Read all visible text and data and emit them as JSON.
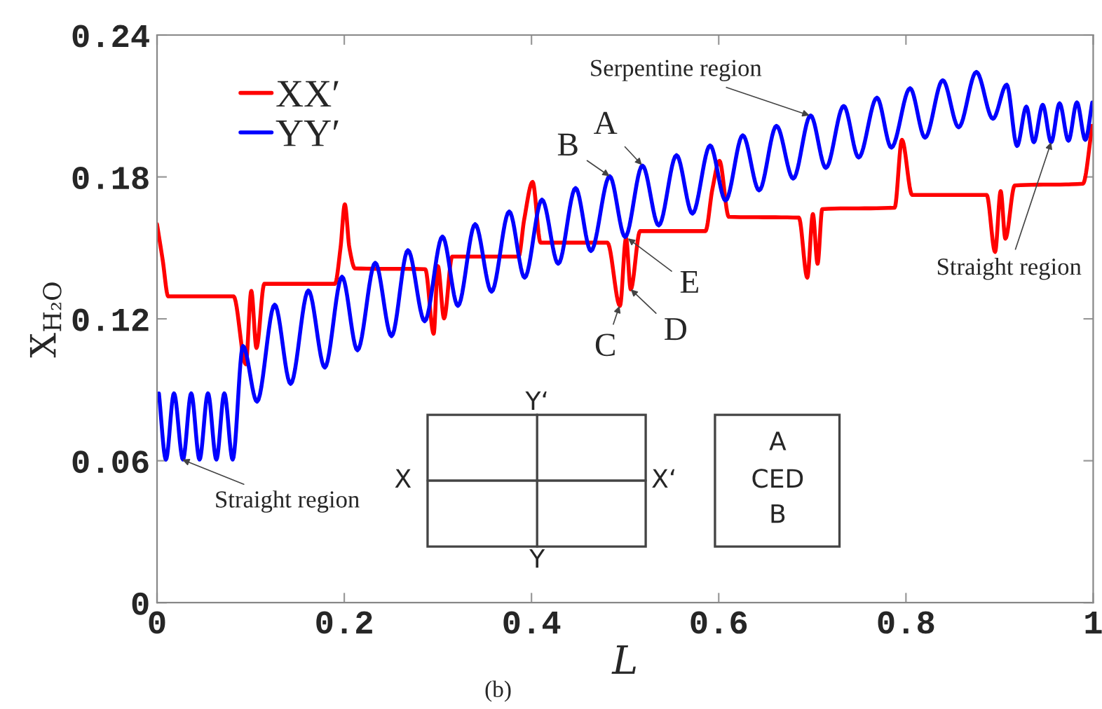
{
  "chart_data": {
    "type": "line",
    "xlabel": "L",
    "ylabel": "X$_{H₂O}$",
    "xlim": [
      0,
      1
    ],
    "ylim": [
      0,
      0.24
    ],
    "xticks": [
      0,
      0.2,
      0.4,
      0.6,
      0.8,
      1
    ],
    "yticks": [
      0,
      0.06,
      0.12,
      0.18,
      0.24
    ],
    "grid": false,
    "legend": "top left",
    "marker": "none",
    "line_style": "solid",
    "series": [
      {
        "name": "XX′",
        "color": "#ff0000",
        "x": [
          0,
          0.006,
          0.012,
          0.0818,
          0.0948,
          0.1007,
          0.1062,
          0.1146,
          0.19,
          0.196,
          0.2006,
          0.2055,
          0.2115,
          0.2865,
          0.2955,
          0.3,
          0.3066,
          0.3153,
          0.3862,
          0.3922,
          0.4012,
          0.4097,
          0.4811,
          0.4945,
          0.501,
          0.506,
          0.516,
          0.5858,
          0.5933,
          0.6008,
          0.6108,
          0.6856,
          0.6946,
          0.7006,
          0.7056,
          0.7106,
          0.7879,
          0.7957,
          0.8066,
          0.8862,
          0.8952,
          0.9012,
          0.9062,
          0.9162,
          0.989,
          0.999
        ],
        "values": [
          0.16,
          0.145,
          0.1295,
          0.1295,
          0.1008,
          0.1318,
          0.1077,
          0.1348,
          0.1348,
          0.15,
          0.1684,
          0.15,
          0.1413,
          0.141,
          0.1137,
          0.1423,
          0.1202,
          0.1463,
          0.1463,
          0.162,
          0.1779,
          0.1522,
          0.1522,
          0.1255,
          0.1542,
          0.1325,
          0.1571,
          0.1571,
          0.175,
          0.1868,
          0.1631,
          0.1628,
          0.1374,
          0.1643,
          0.1433,
          0.1664,
          0.167,
          0.1957,
          0.1724,
          0.1724,
          0.1483,
          0.174,
          0.1539,
          0.1764,
          0.1771,
          0.2016
        ]
      },
      {
        "name": "YY′",
        "color": "#0000ff",
        "x": [
          0.002,
          0.0095,
          0.0181,
          0.0277,
          0.0365,
          0.0454,
          0.0544,
          0.0634,
          0.0719,
          0.0808,
          0.0918,
          0.1068,
          0.1257,
          0.1427,
          0.1617,
          0.1792,
          0.1976,
          0.2141,
          0.2331,
          0.2505,
          0.268,
          0.2859,
          0.3049,
          0.3214,
          0.3398,
          0.3573,
          0.3762,
          0.3927,
          0.4112,
          0.4286,
          0.4471,
          0.4635,
          0.4835,
          0.5,
          0.5185,
          0.5359,
          0.5549,
          0.5719,
          0.5908,
          0.6073,
          0.6257,
          0.6432,
          0.6617,
          0.6796,
          0.6981,
          0.7145,
          0.7335,
          0.7495,
          0.769,
          0.7844,
          0.8044,
          0.8204,
          0.8393,
          0.8563,
          0.8752,
          0.8929,
          0.9076,
          0.9187,
          0.9286,
          0.9366,
          0.9461,
          0.9551,
          0.9641,
          0.9736,
          0.9826,
          0.9916,
          0.999
        ],
        "values": [
          0.0885,
          0.0605,
          0.0885,
          0.0605,
          0.0885,
          0.0605,
          0.0885,
          0.0605,
          0.0885,
          0.0605,
          0.1085,
          0.085,
          0.126,
          0.0925,
          0.132,
          0.0994,
          0.1378,
          0.1067,
          0.1437,
          0.1127,
          0.149,
          0.119,
          0.1548,
          0.1255,
          0.16,
          0.1315,
          0.1654,
          0.1374,
          0.1704,
          0.1433,
          0.1753,
          0.1487,
          0.1803,
          0.1546,
          0.1848,
          0.1595,
          0.1892,
          0.1645,
          0.1933,
          0.17,
          0.1976,
          0.1743,
          0.2016,
          0.1793,
          0.206,
          0.1838,
          0.21,
          0.1882,
          0.2135,
          0.1924,
          0.2175,
          0.1966,
          0.2209,
          0.201,
          0.2244,
          0.2046,
          0.219,
          0.1931,
          0.2097,
          0.1947,
          0.2105,
          0.1947,
          0.2111,
          0.1953,
          0.2115,
          0.1957,
          0.2115
        ]
      }
    ],
    "annotations": [
      {
        "text": "Serpentine region",
        "x": 0.697,
        "y": 0.206
      },
      {
        "text": "Straight region",
        "x": 0.027,
        "y": 0.0605
      },
      {
        "text": "Straight region",
        "x": 0.9551,
        "y": 0.1947
      },
      {
        "text": "A",
        "x": 0.518,
        "y": 0.185
      },
      {
        "text": "B",
        "x": 0.4835,
        "y": 0.1803
      },
      {
        "text": "C",
        "x": 0.494,
        "y": 0.1255
      },
      {
        "text": "D",
        "x": 0.506,
        "y": 0.1325
      },
      {
        "text": "E",
        "x": 0.503,
        "y": 0.154
      },
      "X",
      "X‘",
      "Y‘",
      "Y",
      "A",
      "CED",
      "B",
      "(b)"
    ]
  }
}
